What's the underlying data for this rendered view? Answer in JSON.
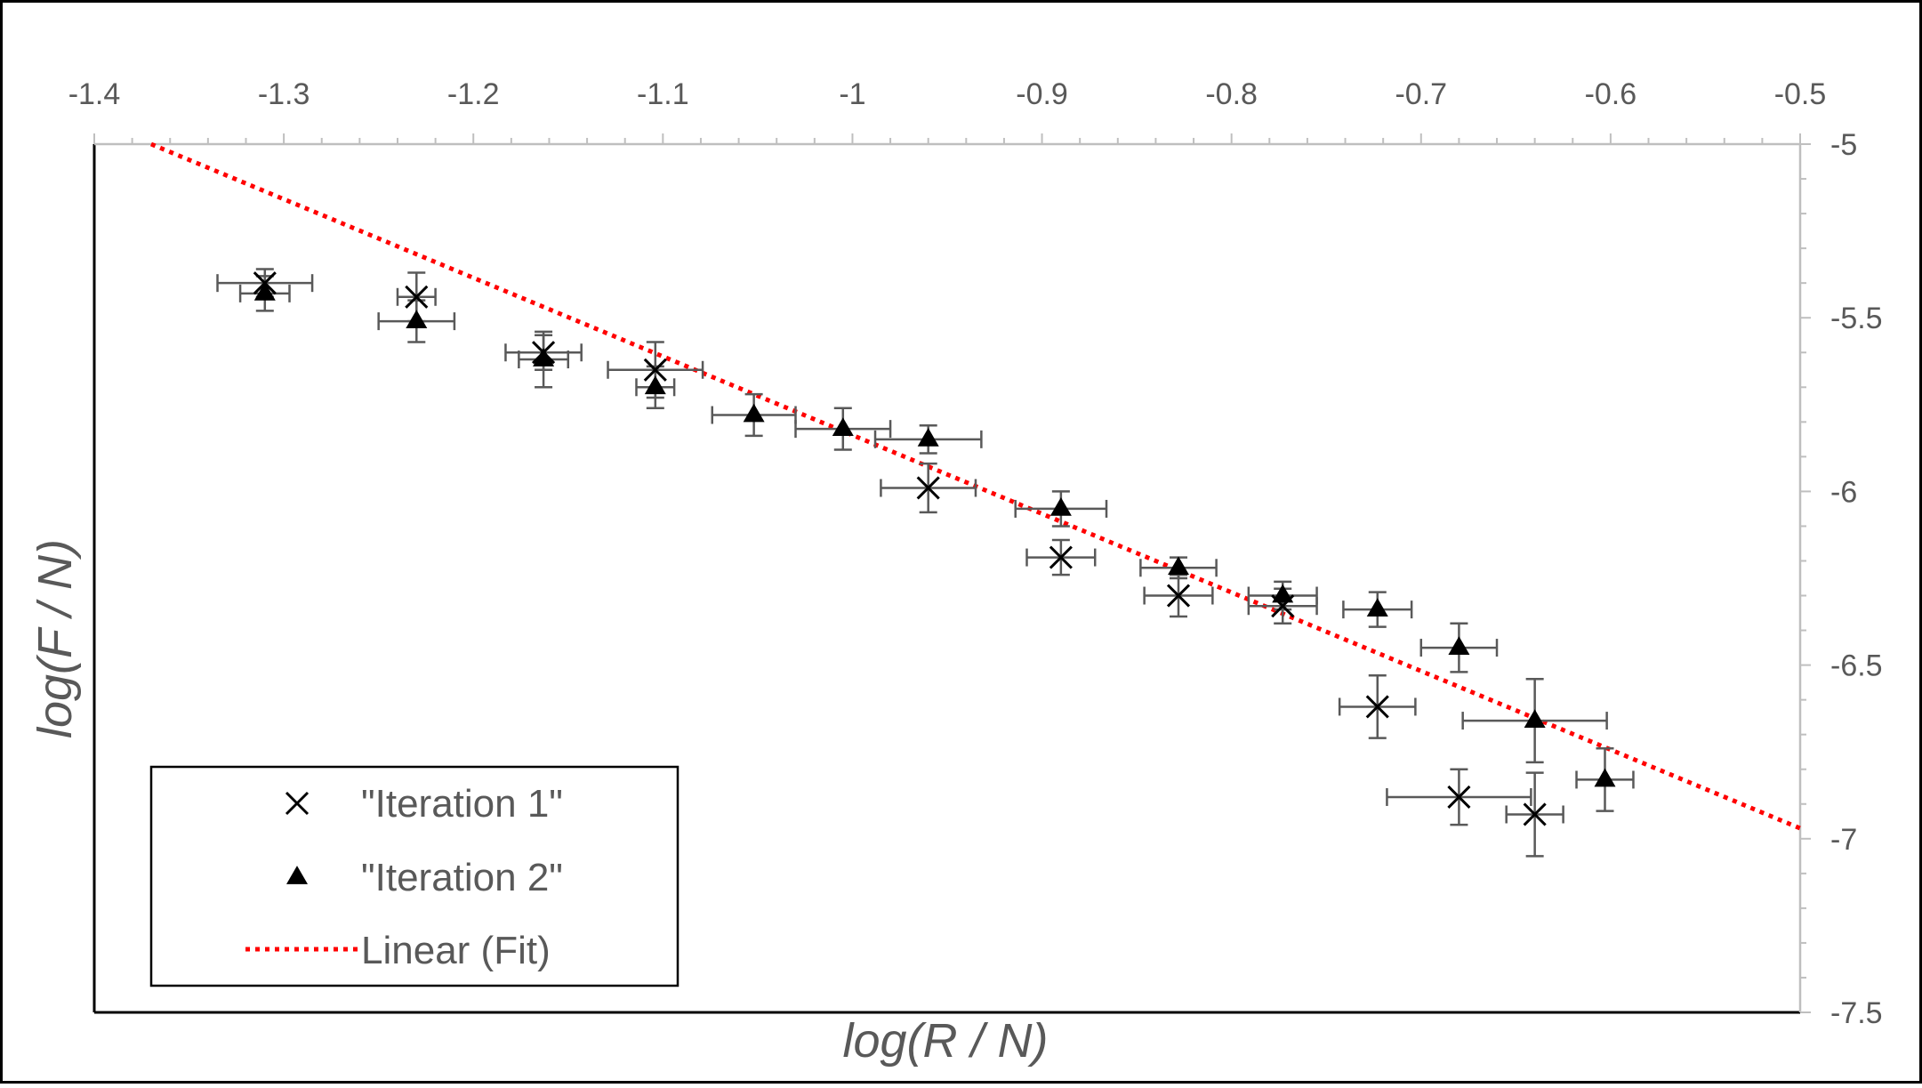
{
  "chart_data": {
    "type": "scatter",
    "title": "",
    "xlabel": "log(R / N)",
    "ylabel": "log(F / N)",
    "xlim": [
      -1.4,
      -0.5
    ],
    "ylim": [
      -7.5,
      -5
    ],
    "x_ticks": [
      -1.4,
      -1.3,
      -1.2,
      -1.1,
      -1,
      -0.9,
      -0.8,
      -0.7,
      -0.6,
      -0.5
    ],
    "x_tick_labels": [
      "-1.4",
      "-1.3",
      "-1.2",
      "-1.1",
      "-1",
      "-0.9",
      "-0.8",
      "-0.7",
      "-0.6",
      "-0.5"
    ],
    "y_ticks": [
      -5,
      -5.5,
      -6,
      -6.5,
      -7,
      -7.5
    ],
    "y_tick_labels": [
      "-5",
      "-5.5",
      "-6",
      "-6.5",
      "-7",
      "-7.5"
    ],
    "x_axis_position": "top",
    "y_axis_position": "right",
    "grid": false,
    "legend_position": "bottom-left",
    "series": [
      {
        "name": "\"Iteration 1\"",
        "marker": "x",
        "color": "#000000",
        "points": [
          {
            "x": -1.31,
            "y": -5.4,
            "xerr": 0.025,
            "yerr": 0.04
          },
          {
            "x": -1.23,
            "y": -5.44,
            "xerr": 0.01,
            "yerr": 0.07
          },
          {
            "x": -1.163,
            "y": -5.6,
            "xerr": 0.02,
            "yerr": 0.05
          },
          {
            "x": -1.104,
            "y": -5.65,
            "xerr": 0.025,
            "yerr": 0.08
          },
          {
            "x": -0.96,
            "y": -5.99,
            "xerr": 0.025,
            "yerr": 0.07
          },
          {
            "x": -0.89,
            "y": -6.19,
            "xerr": 0.018,
            "yerr": 0.05
          },
          {
            "x": -0.828,
            "y": -6.3,
            "xerr": 0.018,
            "yerr": 0.06
          },
          {
            "x": -0.773,
            "y": -6.33,
            "xerr": 0.018,
            "yerr": 0.05
          },
          {
            "x": -0.723,
            "y": -6.62,
            "xerr": 0.02,
            "yerr": 0.09
          },
          {
            "x": -0.68,
            "y": -6.88,
            "xerr": 0.038,
            "yerr": 0.08
          },
          {
            "x": -0.64,
            "y": -6.93,
            "xerr": 0.015,
            "yerr": 0.12
          }
        ]
      },
      {
        "name": "\"Iteration 2\"",
        "marker": "triangle",
        "color": "#000000",
        "points": [
          {
            "x": -1.31,
            "y": -5.43,
            "xerr": 0.013,
            "yerr": 0.05
          },
          {
            "x": -1.23,
            "y": -5.51,
            "xerr": 0.02,
            "yerr": 0.06
          },
          {
            "x": -1.163,
            "y": -5.62,
            "xerr": 0.013,
            "yerr": 0.08
          },
          {
            "x": -1.104,
            "y": -5.7,
            "xerr": 0.01,
            "yerr": 0.06
          },
          {
            "x": -1.052,
            "y": -5.78,
            "xerr": 0.022,
            "yerr": 0.06
          },
          {
            "x": -1.005,
            "y": -5.82,
            "xerr": 0.025,
            "yerr": 0.06
          },
          {
            "x": -0.96,
            "y": -5.85,
            "xerr": 0.028,
            "yerr": 0.04
          },
          {
            "x": -0.89,
            "y": -6.05,
            "xerr": 0.024,
            "yerr": 0.05
          },
          {
            "x": -0.828,
            "y": -6.22,
            "xerr": 0.02,
            "yerr": 0.03
          },
          {
            "x": -0.773,
            "y": -6.3,
            "xerr": 0.018,
            "yerr": 0.04
          },
          {
            "x": -0.723,
            "y": -6.34,
            "xerr": 0.018,
            "yerr": 0.05
          },
          {
            "x": -0.68,
            "y": -6.45,
            "xerr": 0.02,
            "yerr": 0.07
          },
          {
            "x": -0.64,
            "y": -6.66,
            "xerr": 0.038,
            "yerr": 0.12
          },
          {
            "x": -0.603,
            "y": -6.83,
            "xerr": 0.015,
            "yerr": 0.09
          }
        ]
      },
      {
        "name": "Linear (Fit)",
        "marker": "dotted-line",
        "color": "#ff0000",
        "line": [
          {
            "x": -1.37,
            "y": -5.0
          },
          {
            "x": -0.5,
            "y": -6.97
          }
        ]
      }
    ]
  }
}
